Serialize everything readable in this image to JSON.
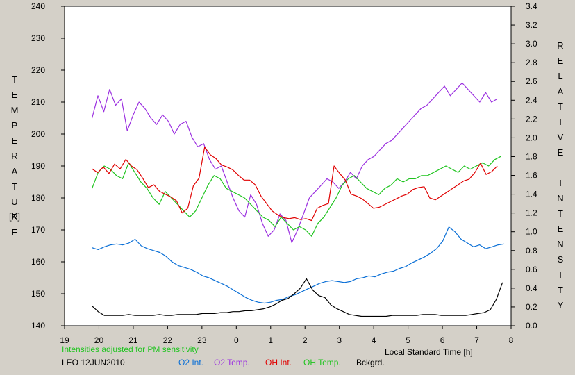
{
  "colors": {
    "background": "#d4d0c8",
    "plot_bg": "#ffffff",
    "o2_int": "#0a6fd6",
    "o2_temp": "#9b30e0",
    "oh_int": "#e00000",
    "oh_temp": "#1fc41f",
    "bckgrd": "#000000",
    "note": "#1fc41f"
  },
  "chart_data": {
    "type": "line",
    "y_left": {
      "label": "TEMPERATURE",
      "unit": "[K]",
      "range": [
        140,
        240
      ],
      "ticks": [
        "140",
        "150",
        "160",
        "170",
        "180",
        "190",
        "200",
        "210",
        "220",
        "230",
        "240"
      ]
    },
    "y_right": {
      "label": "RELATIVE INTENSITY",
      "range": [
        0.0,
        3.4
      ],
      "ticks": [
        "0.0",
        "0.2",
        "0.4",
        "0.6",
        "0.8",
        "1.0",
        "1.2",
        "1.4",
        "1.6",
        "1.8",
        "2.0",
        "2.2",
        "2.4",
        "2.6",
        "2.8",
        "3.0",
        "3.2",
        "3.4"
      ]
    },
    "x": {
      "label": "Local Standard Time [h]",
      "range": [
        19,
        32
      ],
      "tick_values": [
        19,
        20,
        21,
        22,
        23,
        24,
        25,
        26,
        27,
        28,
        29,
        30,
        31,
        32
      ],
      "tick_labels": [
        "19",
        "20",
        "21",
        "22",
        "23",
        "0",
        "1",
        "2",
        "3",
        "4",
        "5",
        "6",
        "7",
        "8"
      ]
    },
    "grid": false,
    "note": "Intensities adjusted for PM sensitivity",
    "station": "LEO 12JUN2010",
    "legend": [
      "O2 Int.",
      "O2 Temp.",
      "OH Int.",
      "OH Temp.",
      "Bckgrd."
    ],
    "series": [
      {
        "name": "O2 Int.",
        "axis": "right",
        "x_start": 19.8,
        "x_end": 31.8,
        "values": [
          0.83,
          0.81,
          0.84,
          0.86,
          0.87,
          0.86,
          0.88,
          0.92,
          0.85,
          0.82,
          0.8,
          0.78,
          0.74,
          0.68,
          0.64,
          0.62,
          0.6,
          0.57,
          0.53,
          0.51,
          0.48,
          0.45,
          0.42,
          0.38,
          0.34,
          0.3,
          0.27,
          0.25,
          0.24,
          0.25,
          0.27,
          0.28,
          0.31,
          0.33,
          0.36,
          0.39,
          0.42,
          0.45,
          0.47,
          0.48,
          0.47,
          0.46,
          0.47,
          0.5,
          0.51,
          0.53,
          0.52,
          0.55,
          0.57,
          0.58,
          0.61,
          0.63,
          0.67,
          0.7,
          0.73,
          0.77,
          0.82,
          0.9,
          1.05,
          1.0,
          0.92,
          0.88,
          0.84,
          0.86,
          0.82,
          0.84,
          0.86,
          0.87
        ]
      },
      {
        "name": "O2 Temp.",
        "axis": "left",
        "x_start": 19.8,
        "x_end": 31.6,
        "values": [
          205,
          212,
          207,
          214,
          209,
          211,
          201,
          206,
          210,
          208,
          205,
          203,
          206,
          204,
          200,
          203,
          204,
          199,
          196,
          197,
          192,
          189,
          190,
          185,
          180,
          176,
          174,
          181,
          178,
          172,
          168,
          170,
          175,
          173,
          166,
          170,
          175,
          180,
          182,
          184,
          186,
          185,
          183,
          185,
          188,
          186,
          190,
          192,
          193,
          195,
          197,
          198,
          200,
          202,
          204,
          206,
          208,
          209,
          211,
          213,
          215,
          212,
          214,
          216,
          214,
          212,
          210,
          213,
          210,
          211
        ]
      },
      {
        "name": "OH Int.",
        "axis": "right",
        "x_start": 19.8,
        "x_end": 31.6,
        "values": [
          1.67,
          1.63,
          1.69,
          1.62,
          1.72,
          1.67,
          1.77,
          1.7,
          1.66,
          1.57,
          1.47,
          1.5,
          1.43,
          1.4,
          1.37,
          1.33,
          1.2,
          1.25,
          1.49,
          1.57,
          1.9,
          1.82,
          1.78,
          1.71,
          1.69,
          1.66,
          1.6,
          1.55,
          1.55,
          1.5,
          1.38,
          1.3,
          1.22,
          1.18,
          1.15,
          1.14,
          1.15,
          1.13,
          1.14,
          1.12,
          1.25,
          1.28,
          1.3,
          1.7,
          1.62,
          1.55,
          1.4,
          1.38,
          1.35,
          1.3,
          1.25,
          1.26,
          1.29,
          1.32,
          1.35,
          1.38,
          1.4,
          1.45,
          1.47,
          1.48,
          1.36,
          1.34,
          1.38,
          1.42,
          1.46,
          1.5,
          1.54,
          1.56,
          1.63,
          1.73,
          1.61,
          1.64,
          1.7
        ]
      },
      {
        "name": "OH Temp.",
        "axis": "left",
        "x_start": 19.8,
        "x_end": 31.7,
        "values": [
          183,
          188,
          190,
          189,
          187,
          186,
          191,
          188,
          185,
          183,
          180,
          178,
          182,
          180,
          178,
          176,
          174,
          176,
          180,
          184,
          187,
          186,
          183,
          182,
          181,
          180,
          178,
          176,
          174,
          173,
          171,
          174,
          172,
          170,
          171,
          170,
          168,
          172,
          174,
          177,
          180,
          184,
          186,
          187,
          185,
          183,
          182,
          181,
          183,
          184,
          186,
          185,
          186,
          186,
          187,
          187,
          188,
          189,
          190,
          189,
          188,
          190,
          189,
          190,
          191,
          190,
          192,
          193
        ]
      },
      {
        "name": "Bckgrd.",
        "axis": "right",
        "x_start": 19.8,
        "x_end": 31.75,
        "values": [
          0.21,
          0.15,
          0.11,
          0.11,
          0.11,
          0.11,
          0.12,
          0.11,
          0.11,
          0.11,
          0.11,
          0.12,
          0.11,
          0.11,
          0.12,
          0.12,
          0.12,
          0.12,
          0.13,
          0.13,
          0.13,
          0.14,
          0.14,
          0.15,
          0.15,
          0.16,
          0.16,
          0.17,
          0.18,
          0.2,
          0.23,
          0.27,
          0.29,
          0.34,
          0.4,
          0.5,
          0.38,
          0.32,
          0.3,
          0.22,
          0.18,
          0.15,
          0.12,
          0.11,
          0.1,
          0.1,
          0.1,
          0.1,
          0.1,
          0.11,
          0.11,
          0.11,
          0.11,
          0.11,
          0.12,
          0.12,
          0.12,
          0.11,
          0.11,
          0.11,
          0.11,
          0.11,
          0.12,
          0.13,
          0.14,
          0.17,
          0.28,
          0.46
        ]
      }
    ]
  }
}
